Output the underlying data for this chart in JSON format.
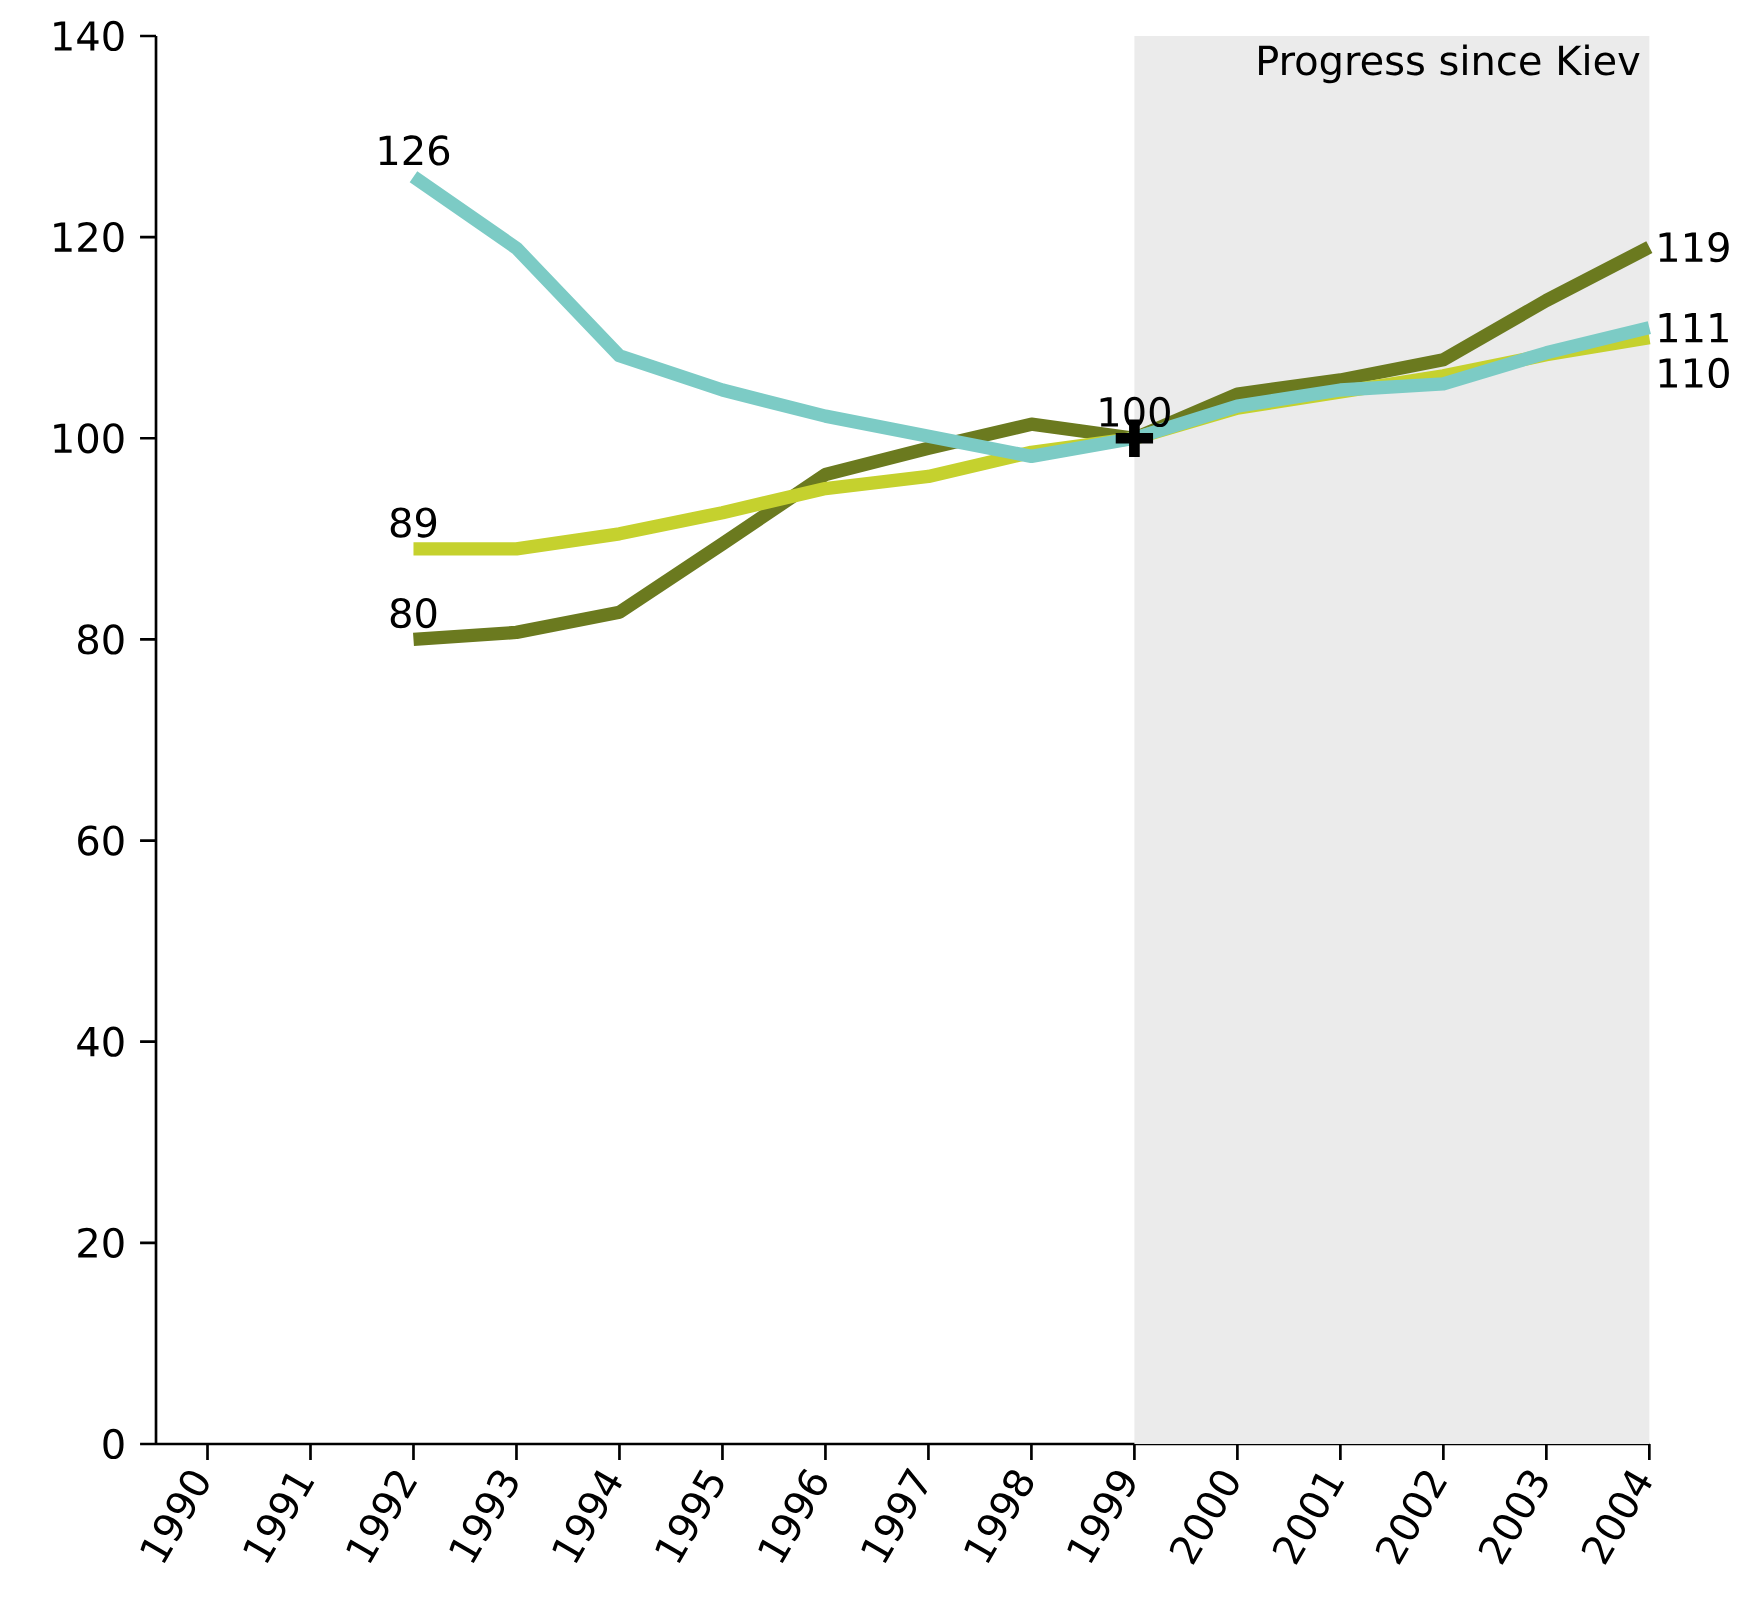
{
  "chart_data": {
    "type": "line",
    "x": [
      1992,
      1993,
      1994,
      1995,
      1996,
      1997,
      1998,
      1999,
      2000,
      2001,
      2002,
      2003,
      2004
    ],
    "series": [
      {
        "color": "#6b7a1f",
        "values": [
          80,
          80.7,
          82.7,
          89.5,
          96.4,
          99,
          101.4,
          100,
          104.4,
          105.8,
          107.8,
          113.7,
          119
        ],
        "value_labels": [
          "80",
          null,
          null,
          null,
          null,
          null,
          null,
          null,
          null,
          null,
          null,
          null,
          "119"
        ]
      },
      {
        "color": "#c5d12e",
        "values": [
          89,
          89,
          90.5,
          92.6,
          95,
          96.2,
          98.6,
          100,
          103,
          104.6,
          106.2,
          108.3,
          110
        ],
        "value_labels": [
          "89",
          null,
          null,
          null,
          null,
          null,
          null,
          null,
          null,
          null,
          null,
          null,
          "110"
        ]
      },
      {
        "color": "#7ccbc5",
        "values": [
          126,
          118.9,
          108.2,
          104.8,
          102.2,
          100.2,
          98.2,
          100,
          103.2,
          104.8,
          105.4,
          108.5,
          111
        ],
        "value_labels": [
          "126",
          null,
          null,
          null,
          null,
          null,
          null,
          null,
          null,
          null,
          null,
          null,
          "111"
        ]
      },
      {
        "type": "scatter",
        "x": [
          1999
        ],
        "color": "#000000",
        "marker": "cross",
        "values": [
          100
        ],
        "value_labels": [
          "100"
        ]
      }
    ],
    "xlim": [
      1989.5,
      2004
    ],
    "xticks": [
      1990,
      1991,
      1992,
      1993,
      1994,
      1995,
      1996,
      1997,
      1998,
      1999,
      2000,
      2001,
      2002,
      2003,
      2004
    ],
    "ylim": [
      0,
      140
    ],
    "yticks": [
      0,
      20,
      40,
      60,
      80,
      100,
      120,
      140
    ],
    "bands": [
      {
        "axis": "x",
        "from": 1999,
        "to": 2004,
        "label": "Progress since Kiev",
        "color": "#ebebeb"
      }
    ]
  }
}
